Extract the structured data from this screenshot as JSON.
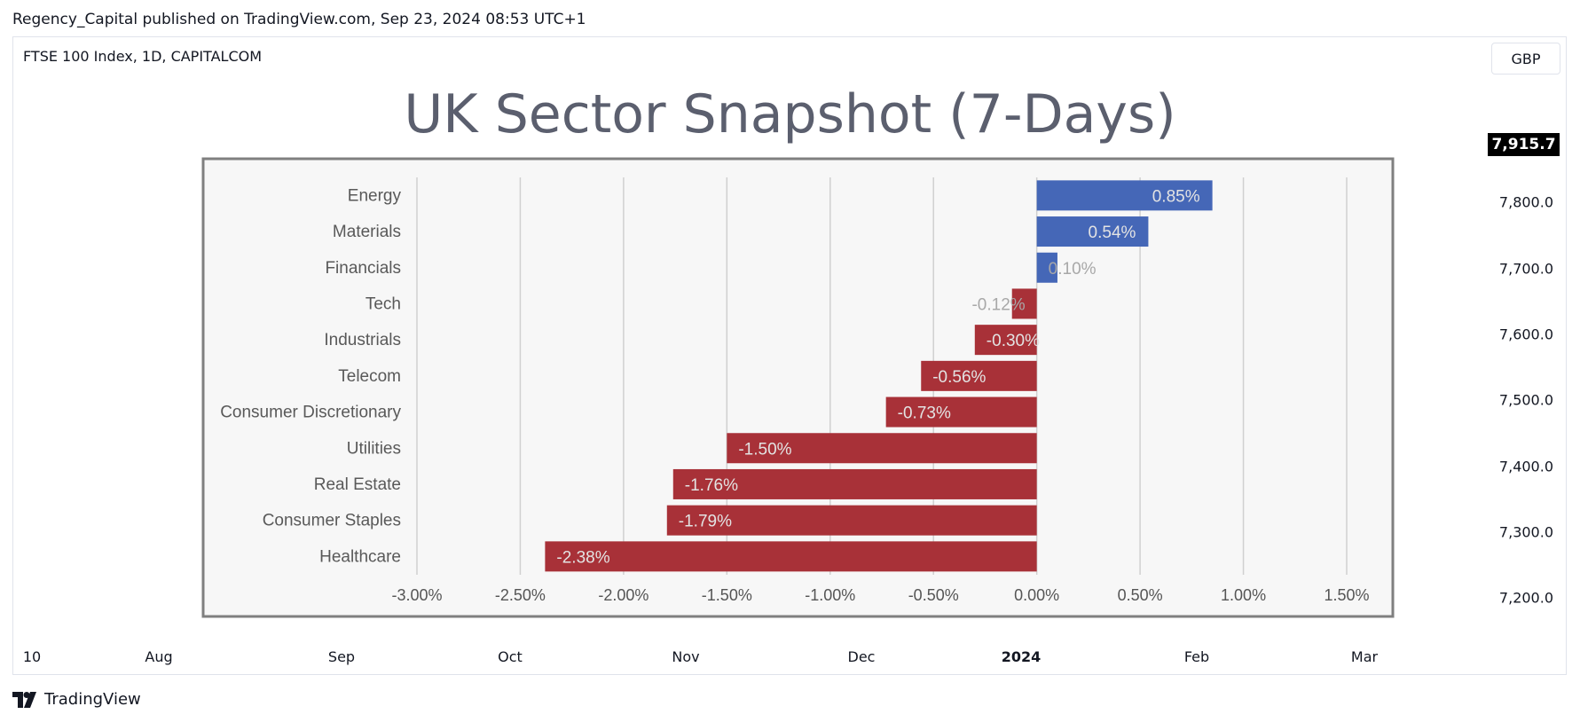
{
  "header": {
    "published": "Regency_Capital published on TradingView.com, Sep 23, 2024 08:53 UTC+1"
  },
  "chart_header": {
    "symbol": "FTSE 100 Index, 1D, CAPITALCOM",
    "currency": "GBP"
  },
  "price_axis": {
    "last_price": "7,915.7",
    "ticks": [
      "7,800.0",
      "7,700.0",
      "7,600.0",
      "7,500.0",
      "7,400.0",
      "7,300.0",
      "7,200.0"
    ]
  },
  "time_axis": {
    "ticks": [
      "10",
      "Aug",
      "Sep",
      "Oct",
      "Nov",
      "Dec",
      "2024",
      "Feb",
      "Mar"
    ]
  },
  "footer": {
    "brand": "TradingView"
  },
  "colors": {
    "positive": "#4567b7",
    "negative": "#a83138",
    "title": "#5b5f6e",
    "panel_bg": "#f7f7f7"
  },
  "chart_data": {
    "type": "bar",
    "orientation": "horizontal",
    "title": "UK Sector Snapshot (7-Days)",
    "categories": [
      "Energy",
      "Materials",
      "Financials",
      "Tech",
      "Industrials",
      "Telecom",
      "Consumer Discretionary",
      "Utilities",
      "Real Estate",
      "Consumer Staples",
      "Healthcare"
    ],
    "values": [
      0.85,
      0.54,
      0.1,
      -0.12,
      -0.3,
      -0.56,
      -0.73,
      -1.5,
      -1.76,
      -1.79,
      -2.38
    ],
    "value_labels": [
      "0.85%",
      "0.54%",
      "0.10%",
      "-0.12%",
      "-0.30%",
      "-0.56%",
      "-0.73%",
      "-1.50%",
      "-1.76%",
      "-1.79%",
      "-2.38%"
    ],
    "xlim": [
      -3.0,
      1.5
    ],
    "xticks": [
      "-3.00%",
      "-2.50%",
      "-2.00%",
      "-1.50%",
      "-1.00%",
      "-0.50%",
      "0.00%",
      "0.50%",
      "1.00%",
      "1.50%"
    ],
    "grid": true
  }
}
